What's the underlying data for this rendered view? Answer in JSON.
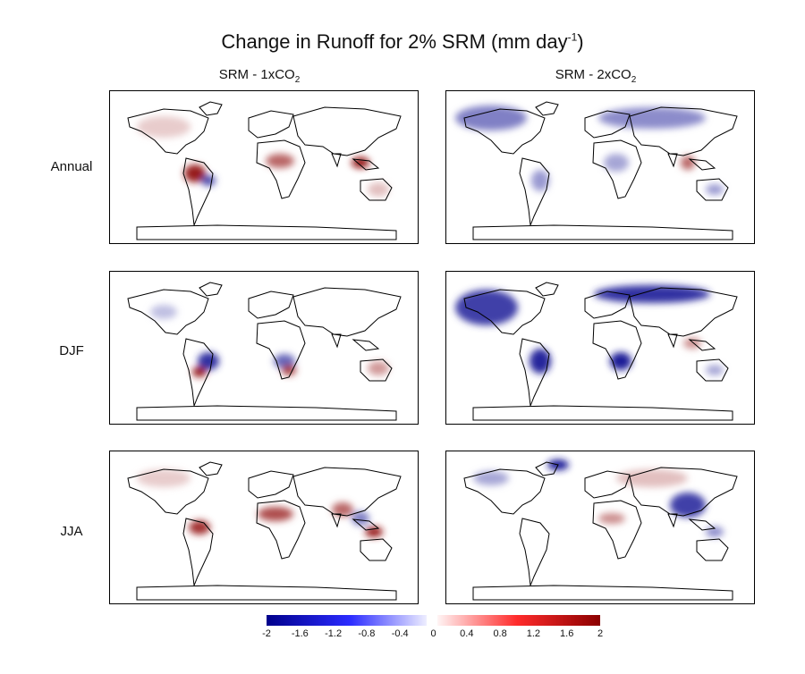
{
  "chart_data": {
    "type": "heatmap",
    "title": "Change in Runoff for 2% SRM (mm day",
    "title_exp": "-1",
    "title_close": ")",
    "columns": [
      {
        "label": "SRM - 1xCO",
        "sub": "2"
      },
      {
        "label": "SRM - 2xCO",
        "sub": "2"
      }
    ],
    "rows": [
      "Annual",
      "DJF",
      "JJA"
    ],
    "colorbar": {
      "min": -2,
      "max": 2,
      "ticks": [
        "-2",
        "-1.6",
        "-1.2",
        "-0.8",
        "-0.4",
        "0",
        "0.4",
        "0.8",
        "1.2",
        "1.6",
        "2"
      ],
      "neg_color": "#00008b",
      "mid_color": "#ffffff",
      "pos_color": "#8b0000"
    },
    "panels": [
      {
        "row": "Annual",
        "column": "SRM - 1xCO2",
        "dominant_sign": "positive",
        "summary": "mostly light red; strong red in tropical South America, central Africa and maritime Asia; blue patch in Amazon"
      },
      {
        "row": "Annual",
        "column": "SRM - 2xCO2",
        "dominant_sign": "negative",
        "summary": "widespread blue over high latitudes and most continents; some red in South/Southeast Asia"
      },
      {
        "row": "DJF",
        "column": "SRM - 1xCO2",
        "dominant_sign": "mixed",
        "summary": "mixed red/blue in South America and southern Africa; red over Australia"
      },
      {
        "row": "DJF",
        "column": "SRM - 2xCO2",
        "dominant_sign": "negative",
        "summary": "strong blue over North America, Europe, Siberia, South America and southern Africa"
      },
      {
        "row": "JJA",
        "column": "SRM - 1xCO2",
        "dominant_sign": "positive",
        "summary": "red over northern South America, West Africa, India and Southeast Asia; some blue in Asia"
      },
      {
        "row": "JJA",
        "column": "SRM - 2xCO2",
        "dominant_sign": "mixed",
        "summary": "blue over Greenland, Canada and East Asia; red over Eurasia and parts of Africa"
      }
    ]
  }
}
